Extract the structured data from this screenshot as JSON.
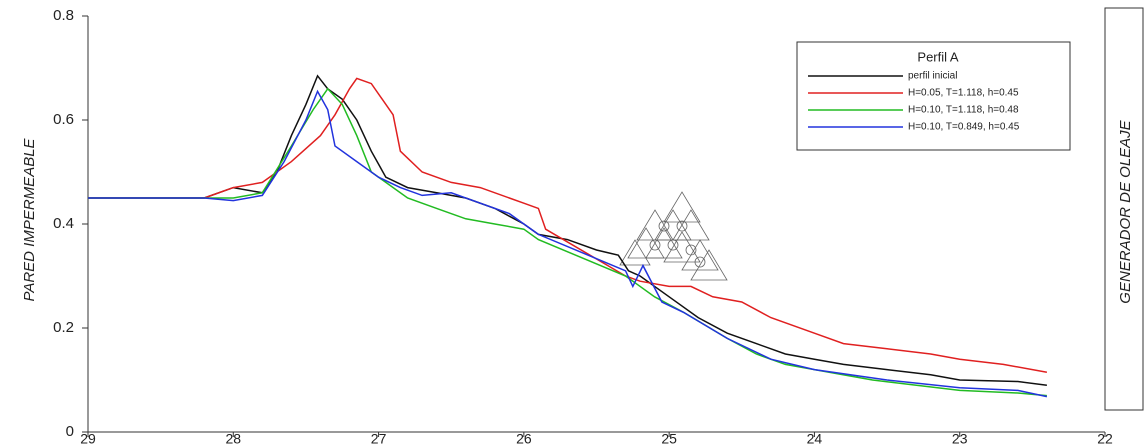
{
  "chart_data": {
    "type": "line",
    "y_label": "PARED IMPERMEABLE",
    "side_label": "GENERADOR DE OLEAJE",
    "legend_title": "Perfil A",
    "xlim": [
      29,
      22
    ],
    "xticks": [
      29,
      28,
      27,
      26,
      25,
      24,
      23,
      22
    ],
    "ylim": [
      0,
      0.8
    ],
    "yticks": [
      0,
      0.2,
      0.4,
      0.6,
      0.8
    ],
    "series": [
      {
        "name": "perfil inicial",
        "color": "#111111",
        "x": [
          29,
          28.2,
          28,
          27.8,
          27.7,
          27.6,
          27.5,
          27.42,
          27.35,
          27.25,
          27.15,
          27.05,
          26.95,
          26.8,
          26.6,
          26.4,
          26.2,
          26.0,
          25.9,
          25.7,
          25.5,
          25.35,
          25.28,
          25.2,
          25.0,
          24.8,
          24.6,
          24.4,
          24.2,
          24.0,
          23.8,
          23.5,
          23.2,
          23.0,
          22.6,
          22.4
        ],
        "values": [
          0.45,
          0.45,
          0.47,
          0.46,
          0.5,
          0.57,
          0.63,
          0.685,
          0.66,
          0.64,
          0.6,
          0.54,
          0.49,
          0.47,
          0.46,
          0.45,
          0.43,
          0.4,
          0.38,
          0.37,
          0.35,
          0.34,
          0.31,
          0.3,
          0.26,
          0.22,
          0.19,
          0.17,
          0.15,
          0.14,
          0.13,
          0.12,
          0.11,
          0.1,
          0.097,
          0.09
        ]
      },
      {
        "name": "H=0.05, T=1.118, h=0.45",
        "color": "#e02020",
        "x": [
          29,
          28.2,
          28,
          27.8,
          27.6,
          27.4,
          27.3,
          27.2,
          27.15,
          27.05,
          26.9,
          26.85,
          26.7,
          26.5,
          26.3,
          26.1,
          26.0,
          25.9,
          25.85,
          25.3,
          25.2,
          25.0,
          24.85,
          24.7,
          24.5,
          24.3,
          24.0,
          23.8,
          23.5,
          23.2,
          23.0,
          22.7,
          22.4
        ],
        "values": [
          0.45,
          0.45,
          0.47,
          0.48,
          0.52,
          0.57,
          0.61,
          0.66,
          0.68,
          0.67,
          0.61,
          0.54,
          0.5,
          0.48,
          0.47,
          0.45,
          0.44,
          0.43,
          0.39,
          0.3,
          0.29,
          0.28,
          0.28,
          0.26,
          0.25,
          0.22,
          0.19,
          0.17,
          0.16,
          0.15,
          0.14,
          0.13,
          0.115
        ]
      },
      {
        "name": "H=0.10, T=1.118, h=0.48",
        "color": "#22bb22",
        "x": [
          29,
          28.2,
          28,
          27.8,
          27.6,
          27.45,
          27.35,
          27.25,
          27.15,
          27.05,
          26.95,
          26.8,
          26.6,
          26.4,
          26.2,
          26.0,
          25.9,
          25.3,
          25.1,
          24.9,
          24.6,
          24.4,
          24.2,
          24.0,
          23.6,
          23.0,
          22.6,
          22.4
        ],
        "values": [
          0.45,
          0.45,
          0.45,
          0.46,
          0.55,
          0.62,
          0.66,
          0.63,
          0.57,
          0.5,
          0.48,
          0.45,
          0.43,
          0.41,
          0.4,
          0.39,
          0.37,
          0.3,
          0.26,
          0.23,
          0.18,
          0.15,
          0.13,
          0.12,
          0.1,
          0.08,
          0.075,
          0.07
        ]
      },
      {
        "name": "H=0.10, T=0.849, h=0.45",
        "color": "#2233dd",
        "x": [
          29,
          28.2,
          28,
          27.8,
          27.65,
          27.5,
          27.42,
          27.35,
          27.3,
          27.15,
          27.0,
          26.85,
          26.7,
          26.5,
          26.3,
          26.1,
          26.0,
          25.9,
          25.3,
          25.25,
          25.18,
          25.05,
          24.9,
          24.6,
          24.3,
          24.0,
          23.5,
          23.0,
          22.6,
          22.4
        ],
        "values": [
          0.45,
          0.45,
          0.445,
          0.455,
          0.52,
          0.6,
          0.655,
          0.62,
          0.55,
          0.52,
          0.49,
          0.47,
          0.455,
          0.46,
          0.44,
          0.42,
          0.4,
          0.38,
          0.31,
          0.28,
          0.32,
          0.25,
          0.23,
          0.18,
          0.14,
          0.12,
          0.1,
          0.085,
          0.08,
          0.068
        ]
      }
    ]
  }
}
